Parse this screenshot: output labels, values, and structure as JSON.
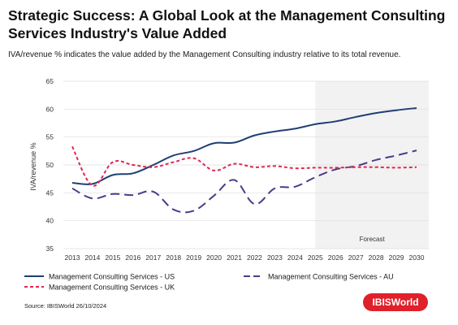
{
  "header": {
    "title": "Strategic Success: A Global Look at the Management Consulting Services Industry's Value Added",
    "subtitle": "IVA/revenue % indicates the value added by the Management Consulting industry relative to its total revenue."
  },
  "footer": {
    "source": "Source: IBISWorld 26/10/2024",
    "logo_text": "IBISWorld"
  },
  "colors": {
    "us": "#1f3f73",
    "au": "#4b3b8c",
    "uk": "#e02752",
    "forecast_shade": "#f2f2f2",
    "logo_bg": "#e0202a"
  },
  "chart_data": {
    "type": "line",
    "title": "Strategic Success: A Global Look at the Management Consulting Services Industry's Value Added",
    "ylabel": "IVA/revenue %",
    "xlabel": "",
    "x": [
      "2013",
      "2014",
      "2015",
      "2016",
      "2017",
      "2018",
      "2019",
      "2020",
      "2021",
      "2022",
      "2023",
      "2024",
      "2025",
      "2026",
      "2027",
      "2028",
      "2029",
      "2030"
    ],
    "ylim": [
      35,
      65
    ],
    "yticks": [
      35,
      40,
      45,
      50,
      55,
      60,
      65
    ],
    "grid": "horizontal",
    "legend_position": "bottom",
    "forecast_start": "2025",
    "forecast_label": "Forecast",
    "series": [
      {
        "name": "Management Consulting Services - US",
        "style": "solid",
        "values": [
          46.8,
          46.6,
          48.2,
          48.5,
          50.0,
          51.7,
          52.5,
          53.9,
          54.0,
          55.3,
          56.0,
          56.5,
          57.3,
          57.8,
          58.6,
          59.3,
          59.8,
          60.2
        ]
      },
      {
        "name": "Management Consulting Services - AU",
        "style": "long-dash",
        "values": [
          45.8,
          44.0,
          44.8,
          44.6,
          45.2,
          42.0,
          41.8,
          44.5,
          47.3,
          43.0,
          45.8,
          46.1,
          47.8,
          49.2,
          49.8,
          50.9,
          51.7,
          52.6
        ]
      },
      {
        "name": "Management Consulting Services - UK",
        "style": "short-dash",
        "values": [
          53.3,
          46.3,
          50.5,
          50.0,
          49.6,
          50.5,
          51.2,
          49.0,
          50.2,
          49.6,
          49.8,
          49.4,
          49.5,
          49.5,
          49.6,
          49.6,
          49.5,
          49.6
        ]
      }
    ]
  }
}
